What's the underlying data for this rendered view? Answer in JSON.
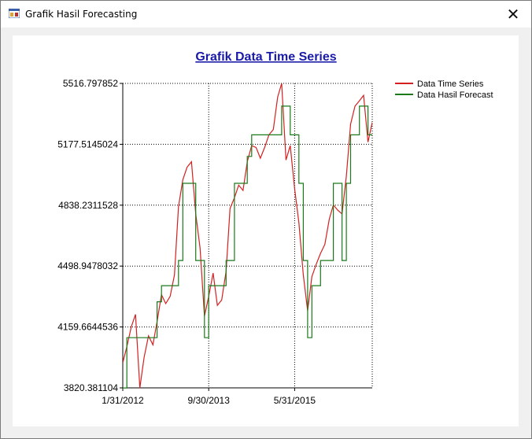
{
  "window": {
    "title": "Grafik Hasil Forecasting",
    "close_glyph": "✕"
  },
  "colors": {
    "series_actual": "#d42020",
    "series_forecast": "#1a7a1a",
    "title": "#1a1aa8",
    "grid": "#000000"
  },
  "chart_data": {
    "type": "line",
    "title": "Grafik Data Time Series",
    "xlabel": "",
    "ylabel": "",
    "x_ticks": [
      "1/31/2012",
      "9/30/2013",
      "5/31/2015"
    ],
    "y_ticks": [
      "5516.797852",
      "5177.5145024",
      "4838.2311528",
      "4498.9478032",
      "4159.6644536",
      "3820.381104"
    ],
    "ylim": [
      3820.381104,
      5516.797852
    ],
    "x_range": [
      "1/31/2012",
      "11/30/2016"
    ],
    "grid": true,
    "legend_position": "top-right",
    "series": [
      {
        "name": "Data Time Series",
        "color": "#d42020",
        "points": [
          [
            "1/31/2012",
            3960
          ],
          [
            "2/29/2012",
            4050
          ],
          [
            "3/31/2012",
            4160
          ],
          [
            "4/30/2012",
            4230
          ],
          [
            "5/31/2012",
            3820
          ],
          [
            "6/30/2012",
            3990
          ],
          [
            "7/31/2012",
            4110
          ],
          [
            "8/31/2012",
            4060
          ],
          [
            "9/30/2012",
            4190
          ],
          [
            "10/31/2012",
            4340
          ],
          [
            "11/30/2012",
            4290
          ],
          [
            "12/31/2012",
            4330
          ],
          [
            "1/31/2013",
            4450
          ],
          [
            "2/28/2013",
            4830
          ],
          [
            "3/31/2013",
            4980
          ],
          [
            "4/30/2013",
            5050
          ],
          [
            "5/31/2013",
            5080
          ],
          [
            "6/30/2013",
            4790
          ],
          [
            "7/31/2013",
            4600
          ],
          [
            "8/31/2013",
            4220
          ],
          [
            "9/30/2013",
            4330
          ],
          [
            "10/31/2013",
            4460
          ],
          [
            "11/30/2013",
            4280
          ],
          [
            "12/31/2013",
            4310
          ],
          [
            "1/31/2014",
            4470
          ],
          [
            "2/28/2014",
            4820
          ],
          [
            "3/31/2014",
            4880
          ],
          [
            "4/30/2014",
            4950
          ],
          [
            "5/31/2014",
            4920
          ],
          [
            "6/30/2014",
            5080
          ],
          [
            "7/31/2014",
            5170
          ],
          [
            "8/31/2014",
            5160
          ],
          [
            "9/30/2014",
            5100
          ],
          [
            "10/31/2014",
            5160
          ],
          [
            "11/30/2014",
            5230
          ],
          [
            "12/31/2014",
            5260
          ],
          [
            "1/31/2015",
            5440
          ],
          [
            "2/28/2015",
            5516.797852
          ],
          [
            "3/31/2015",
            5090
          ],
          [
            "4/30/2015",
            5170
          ],
          [
            "5/31/2015",
            4930
          ],
          [
            "6/30/2015",
            4740
          ],
          [
            "7/31/2015",
            4450
          ],
          [
            "8/31/2015",
            4250
          ],
          [
            "9/30/2015",
            4440
          ],
          [
            "10/31/2015",
            4510
          ],
          [
            "11/30/2015",
            4570
          ],
          [
            "12/31/2015",
            4620
          ],
          [
            "1/31/2016",
            4760
          ],
          [
            "2/29/2016",
            4840
          ],
          [
            "3/31/2016",
            4810
          ],
          [
            "4/30/2016",
            4790
          ],
          [
            "5/31/2016",
            5000
          ],
          [
            "6/30/2016",
            5290
          ],
          [
            "7/31/2016",
            5390
          ],
          [
            "8/31/2016",
            5420
          ],
          [
            "9/30/2016",
            5450
          ],
          [
            "10/31/2016",
            5190
          ],
          [
            "11/30/2016",
            5300
          ]
        ]
      },
      {
        "name": "Data Hasil Forecast",
        "color": "#1a7a1a",
        "points": [
          [
            "1/31/2012",
            3820
          ],
          [
            "2/29/2012",
            4100
          ],
          [
            "3/31/2012",
            4100
          ],
          [
            "4/30/2012",
            4100
          ],
          [
            "5/31/2012",
            4100
          ],
          [
            "6/30/2012",
            4100
          ],
          [
            "7/31/2012",
            4100
          ],
          [
            "8/31/2012",
            4100
          ],
          [
            "9/30/2012",
            4300
          ],
          [
            "10/31/2012",
            4390
          ],
          [
            "11/30/2012",
            4390
          ],
          [
            "12/31/2012",
            4390
          ],
          [
            "1/31/2013",
            4390
          ],
          [
            "2/28/2013",
            4530
          ],
          [
            "3/31/2013",
            4960
          ],
          [
            "4/30/2013",
            4960
          ],
          [
            "5/31/2013",
            4960
          ],
          [
            "6/30/2013",
            4530
          ],
          [
            "7/31/2013",
            4530
          ],
          [
            "8/31/2013",
            4100
          ],
          [
            "9/30/2013",
            4390
          ],
          [
            "10/31/2013",
            4390
          ],
          [
            "11/30/2013",
            4390
          ],
          [
            "12/31/2013",
            4390
          ],
          [
            "1/31/2014",
            4530
          ],
          [
            "2/28/2014",
            4530
          ],
          [
            "3/31/2014",
            4960
          ],
          [
            "4/30/2014",
            4960
          ],
          [
            "5/31/2014",
            4960
          ],
          [
            "6/30/2014",
            5110
          ],
          [
            "7/31/2014",
            5230
          ],
          [
            "8/31/2014",
            5230
          ],
          [
            "9/30/2014",
            5230
          ],
          [
            "10/31/2014",
            5230
          ],
          [
            "11/30/2014",
            5230
          ],
          [
            "12/31/2014",
            5230
          ],
          [
            "1/31/2015",
            5230
          ],
          [
            "2/28/2015",
            5390
          ],
          [
            "3/31/2015",
            5390
          ],
          [
            "4/30/2015",
            5230
          ],
          [
            "5/31/2015",
            5230
          ],
          [
            "6/30/2015",
            4960
          ],
          [
            "7/31/2015",
            4530
          ],
          [
            "8/31/2015",
            4100
          ],
          [
            "9/30/2015",
            4390
          ],
          [
            "10/31/2015",
            4390
          ],
          [
            "11/30/2015",
            4530
          ],
          [
            "12/31/2015",
            4530
          ],
          [
            "1/31/2016",
            4530
          ],
          [
            "2/29/2016",
            4960
          ],
          [
            "3/31/2016",
            4960
          ],
          [
            "4/30/2016",
            4530
          ],
          [
            "5/31/2016",
            4960
          ],
          [
            "6/30/2016",
            5230
          ],
          [
            "7/31/2016",
            5230
          ],
          [
            "8/31/2016",
            5390
          ],
          [
            "9/30/2016",
            5390
          ],
          [
            "10/31/2016",
            5230
          ],
          [
            "11/30/2016",
            5230
          ]
        ]
      }
    ]
  }
}
